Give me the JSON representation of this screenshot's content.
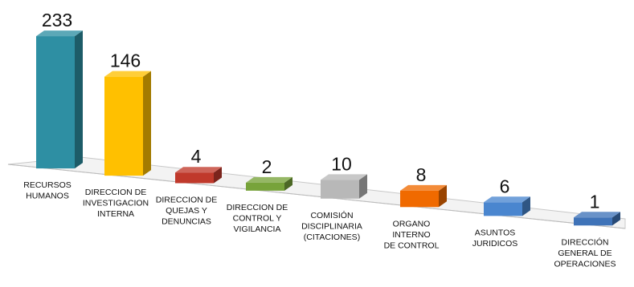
{
  "chart_data": {
    "type": "bar",
    "title": "",
    "xlabel": "",
    "ylabel": "",
    "categories": [
      [
        "RECURSOS",
        "HUMANOS"
      ],
      [
        "DIRECCION DE",
        "INVESTIGACION",
        "INTERNA"
      ],
      [
        "DIRECCION DE",
        "QUEJAS Y",
        "DENUNCIAS"
      ],
      [
        "DIRECCION DE",
        "CONTROL Y",
        "VIGILANCIA"
      ],
      [
        "COMISIÓN",
        "DISCIPLINARIA",
        "(CITACIONES)"
      ],
      [
        "ORGANO",
        "INTERNO",
        "DE CONTROL"
      ],
      [
        "ASUNTOS",
        "JURIDICOS"
      ],
      [
        "DIRECCIÓN",
        "GENERAL DE",
        "OPERACIONES"
      ]
    ],
    "values": [
      233,
      146,
      4,
      2,
      10,
      8,
      6,
      1
    ],
    "value_labels": [
      "233",
      "146",
      "4",
      "2",
      "10",
      "8",
      "6",
      "1"
    ],
    "colors": [
      "#2e8fa3",
      "#ffc000",
      "#c0392b",
      "#77a33a",
      "#b8b8b8",
      "#f06a00",
      "#4a86cf",
      "#3f73b8"
    ],
    "chart_style": "3d-perspective-columns",
    "grid": false,
    "legend": "none"
  }
}
